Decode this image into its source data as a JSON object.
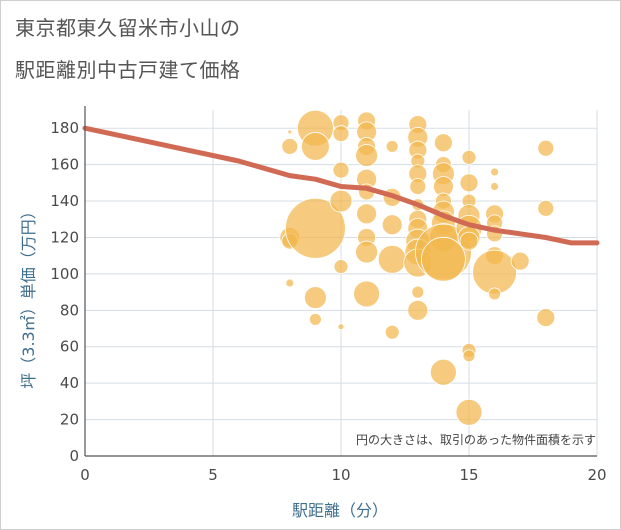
{
  "title_line1": "東京都東久留米市小山の",
  "title_line2": "駅距離別中古戸建て価格",
  "note": "円の大きさは、取引のあった物件面積を示す",
  "colors": {
    "bubble": "#f3b74e",
    "line": "#d06a55",
    "grid": "#d5dde3",
    "axis_text": "#3f6f8f"
  },
  "chart_data": {
    "type": "scatter",
    "xlabel": "駅距離（分）",
    "ylabel": "坪（3.3㎡）単価（万円）",
    "xlim": [
      0,
      20
    ],
    "ylim": [
      0,
      190
    ],
    "xticks": [
      0,
      5,
      10,
      15,
      20
    ],
    "yticks": [
      0,
      20,
      40,
      60,
      80,
      100,
      120,
      140,
      160,
      180
    ],
    "points": [
      {
        "x": 8,
        "y": 95,
        "r": 4
      },
      {
        "x": 8,
        "y": 120,
        "r": 10
      },
      {
        "x": 8,
        "y": 118,
        "r": 8
      },
      {
        "x": 8,
        "y": 170,
        "r": 8
      },
      {
        "x": 8,
        "y": 178,
        "r": 2
      },
      {
        "x": 9,
        "y": 180,
        "r": 18
      },
      {
        "x": 9,
        "y": 170,
        "r": 14
      },
      {
        "x": 9,
        "y": 125,
        "r": 30
      },
      {
        "x": 9,
        "y": 87,
        "r": 11
      },
      {
        "x": 9,
        "y": 75,
        "r": 6
      },
      {
        "x": 10,
        "y": 183,
        "r": 8
      },
      {
        "x": 10,
        "y": 177,
        "r": 8
      },
      {
        "x": 10,
        "y": 157,
        "r": 8
      },
      {
        "x": 10,
        "y": 140,
        "r": 11
      },
      {
        "x": 10,
        "y": 104,
        "r": 7
      },
      {
        "x": 10,
        "y": 71,
        "r": 3
      },
      {
        "x": 11,
        "y": 184,
        "r": 9
      },
      {
        "x": 11,
        "y": 178,
        "r": 10
      },
      {
        "x": 11,
        "y": 170,
        "r": 9
      },
      {
        "x": 11,
        "y": 165,
        "r": 11
      },
      {
        "x": 11,
        "y": 152,
        "r": 10
      },
      {
        "x": 11,
        "y": 145,
        "r": 8
      },
      {
        "x": 11,
        "y": 133,
        "r": 10
      },
      {
        "x": 11,
        "y": 120,
        "r": 9
      },
      {
        "x": 11,
        "y": 112,
        "r": 11
      },
      {
        "x": 11,
        "y": 89,
        "r": 13
      },
      {
        "x": 12,
        "y": 170,
        "r": 6
      },
      {
        "x": 12,
        "y": 142,
        "r": 9
      },
      {
        "x": 12,
        "y": 127,
        "r": 10
      },
      {
        "x": 12,
        "y": 108,
        "r": 14
      },
      {
        "x": 12,
        "y": 68,
        "r": 7
      },
      {
        "x": 13,
        "y": 182,
        "r": 9
      },
      {
        "x": 13,
        "y": 175,
        "r": 10
      },
      {
        "x": 13,
        "y": 168,
        "r": 9
      },
      {
        "x": 13,
        "y": 162,
        "r": 7
      },
      {
        "x": 13,
        "y": 155,
        "r": 9
      },
      {
        "x": 13,
        "y": 148,
        "r": 8
      },
      {
        "x": 13,
        "y": 138,
        "r": 6
      },
      {
        "x": 13,
        "y": 130,
        "r": 9
      },
      {
        "x": 13,
        "y": 125,
        "r": 10
      },
      {
        "x": 13,
        "y": 118,
        "r": 12
      },
      {
        "x": 13,
        "y": 112,
        "r": 13
      },
      {
        "x": 13,
        "y": 106,
        "r": 14
      },
      {
        "x": 13,
        "y": 90,
        "r": 6
      },
      {
        "x": 13,
        "y": 80,
        "r": 10
      },
      {
        "x": 14,
        "y": 172,
        "r": 9
      },
      {
        "x": 14,
        "y": 160,
        "r": 8
      },
      {
        "x": 14,
        "y": 155,
        "r": 11
      },
      {
        "x": 14,
        "y": 148,
        "r": 10
      },
      {
        "x": 14,
        "y": 140,
        "r": 8
      },
      {
        "x": 14,
        "y": 134,
        "r": 11
      },
      {
        "x": 14,
        "y": 128,
        "r": 12
      },
      {
        "x": 14,
        "y": 120,
        "r": 14
      },
      {
        "x": 14,
        "y": 112,
        "r": 28
      },
      {
        "x": 14,
        "y": 108,
        "r": 22
      },
      {
        "x": 14,
        "y": 46,
        "r": 13
      },
      {
        "x": 15,
        "y": 164,
        "r": 7
      },
      {
        "x": 15,
        "y": 150,
        "r": 9
      },
      {
        "x": 15,
        "y": 140,
        "r": 7
      },
      {
        "x": 15,
        "y": 132,
        "r": 11
      },
      {
        "x": 15,
        "y": 125,
        "r": 13
      },
      {
        "x": 15,
        "y": 120,
        "r": 11
      },
      {
        "x": 15,
        "y": 118,
        "r": 9
      },
      {
        "x": 15,
        "y": 58,
        "r": 7
      },
      {
        "x": 15,
        "y": 55,
        "r": 6
      },
      {
        "x": 15,
        "y": 24,
        "r": 13
      },
      {
        "x": 16,
        "y": 156,
        "r": 4
      },
      {
        "x": 16,
        "y": 148,
        "r": 4
      },
      {
        "x": 16,
        "y": 133,
        "r": 9
      },
      {
        "x": 16,
        "y": 128,
        "r": 8
      },
      {
        "x": 16,
        "y": 122,
        "r": 8
      },
      {
        "x": 16,
        "y": 110,
        "r": 9
      },
      {
        "x": 16,
        "y": 101,
        "r": 22
      },
      {
        "x": 16,
        "y": 89,
        "r": 6
      },
      {
        "x": 17,
        "y": 107,
        "r": 9
      },
      {
        "x": 18,
        "y": 169,
        "r": 8
      },
      {
        "x": 18,
        "y": 136,
        "r": 8
      },
      {
        "x": 18,
        "y": 76,
        "r": 9
      }
    ],
    "trend_line": [
      {
        "x": 0,
        "y": 180
      },
      {
        "x": 2,
        "y": 174
      },
      {
        "x": 4,
        "y": 168
      },
      {
        "x": 6,
        "y": 162
      },
      {
        "x": 8,
        "y": 154
      },
      {
        "x": 9,
        "y": 152
      },
      {
        "x": 10,
        "y": 148
      },
      {
        "x": 11,
        "y": 147
      },
      {
        "x": 12,
        "y": 143
      },
      {
        "x": 13,
        "y": 138
      },
      {
        "x": 14,
        "y": 132
      },
      {
        "x": 15,
        "y": 127
      },
      {
        "x": 16,
        "y": 124
      },
      {
        "x": 17,
        "y": 122
      },
      {
        "x": 18,
        "y": 120
      },
      {
        "x": 19,
        "y": 117
      },
      {
        "x": 20,
        "y": 117
      }
    ]
  }
}
